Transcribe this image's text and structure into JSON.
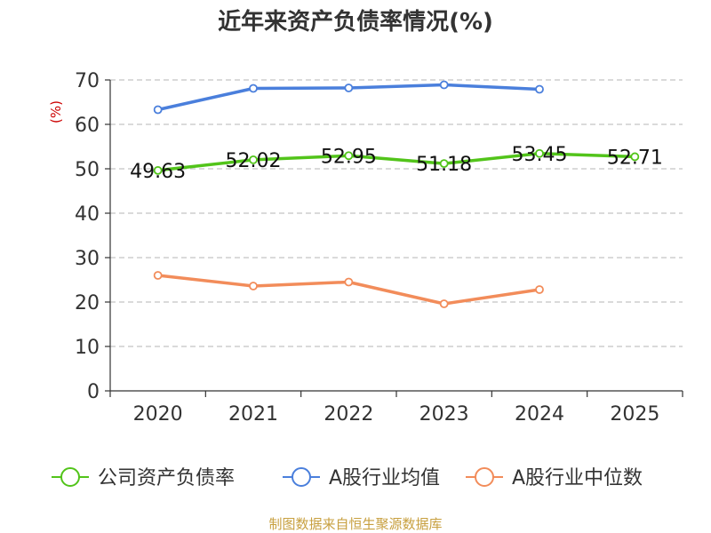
{
  "chart_data": {
    "type": "line",
    "title": "近年来资产负债率情况(%)",
    "ylabel": "(%)",
    "xlabel": "",
    "categories": [
      "2020",
      "2021",
      "2022",
      "2023",
      "2024",
      "2025"
    ],
    "ylim": [
      0,
      70
    ],
    "yticks": [
      0,
      10,
      20,
      30,
      40,
      50,
      60,
      70
    ],
    "grid": true,
    "legend_position": "bottom",
    "series": [
      {
        "name": "公司资产负债率",
        "color": "#52c41a",
        "values": [
          49.63,
          52.02,
          52.95,
          51.18,
          53.45,
          52.71
        ],
        "labels": [
          "49.63",
          "52.02",
          "52.95",
          "51.18",
          "53.45",
          "52.71"
        ]
      },
      {
        "name": "A股行业均值",
        "color": "#4a7fdc",
        "values": [
          63.3,
          68.1,
          68.2,
          68.9,
          67.9,
          null
        ]
      },
      {
        "name": "A股行业中位数",
        "color": "#f28c5a",
        "values": [
          26.0,
          23.6,
          24.5,
          19.6,
          22.8,
          null
        ]
      }
    ]
  },
  "source": "制图数据来自恒生聚源数据库"
}
